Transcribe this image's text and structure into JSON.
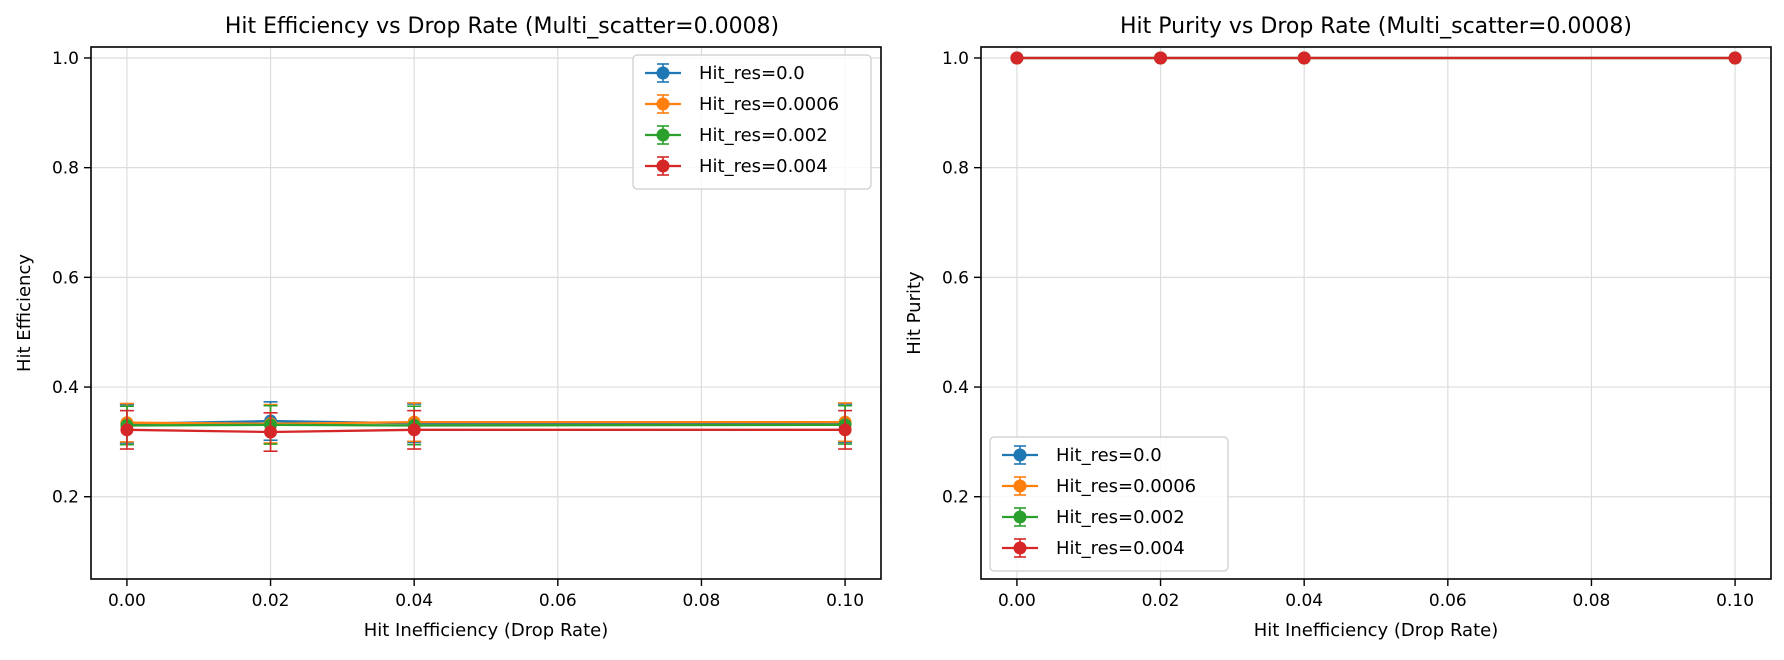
{
  "chart_data": [
    {
      "type": "line",
      "title": "Hit Efficiency vs Drop Rate (Multi_scatter=0.0008)",
      "xlabel": "Hit Inefficiency (Drop Rate)",
      "ylabel": "Hit Efficiency",
      "x": [
        0.0,
        0.02,
        0.04,
        0.1
      ],
      "xlim": [
        -0.005,
        0.105
      ],
      "ylim": [
        0.05,
        1.02
      ],
      "xticks": [
        "0.00",
        "0.02",
        "0.04",
        "0.06",
        "0.08",
        "0.10"
      ],
      "yticks": [
        "0.2",
        "0.4",
        "0.6",
        "0.8",
        "1.0"
      ],
      "grid": true,
      "legend_position": "top-right",
      "series": [
        {
          "name": "Hit_res=0.0",
          "color": "#1f77b4",
          "values": [
            0.333,
            0.338,
            0.334,
            0.334
          ],
          "errors": [
            0.035,
            0.035,
            0.035,
            0.035
          ]
        },
        {
          "name": "Hit_res=0.0006",
          "color": "#ff7f0e",
          "values": [
            0.335,
            0.333,
            0.336,
            0.336
          ],
          "errors": [
            0.035,
            0.035,
            0.035,
            0.035
          ]
        },
        {
          "name": "Hit_res=0.002",
          "color": "#2ca02c",
          "values": [
            0.33,
            0.331,
            0.33,
            0.331
          ],
          "errors": [
            0.035,
            0.035,
            0.035,
            0.035
          ]
        },
        {
          "name": "Hit_res=0.004",
          "color": "#d62728",
          "values": [
            0.322,
            0.318,
            0.322,
            0.322
          ],
          "errors": [
            0.035,
            0.035,
            0.035,
            0.035
          ]
        }
      ]
    },
    {
      "type": "line",
      "title": "Hit Purity vs Drop Rate (Multi_scatter=0.0008)",
      "xlabel": "Hit Inefficiency (Drop Rate)",
      "ylabel": "Hit Purity",
      "x": [
        0.0,
        0.02,
        0.04,
        0.1
      ],
      "xlim": [
        -0.005,
        0.105
      ],
      "ylim": [
        0.05,
        1.02
      ],
      "xticks": [
        "0.00",
        "0.02",
        "0.04",
        "0.06",
        "0.08",
        "0.10"
      ],
      "yticks": [
        "0.2",
        "0.4",
        "0.6",
        "0.8",
        "1.0"
      ],
      "grid": true,
      "legend_position": "bottom-left",
      "series": [
        {
          "name": "Hit_res=0.0",
          "color": "#1f77b4",
          "values": [
            1.0,
            1.0,
            1.0,
            1.0
          ],
          "errors": [
            0.0,
            0.0,
            0.0,
            0.0
          ]
        },
        {
          "name": "Hit_res=0.0006",
          "color": "#ff7f0e",
          "values": [
            1.0,
            1.0,
            1.0,
            1.0
          ],
          "errors": [
            0.0,
            0.0,
            0.0,
            0.0
          ]
        },
        {
          "name": "Hit_res=0.002",
          "color": "#2ca02c",
          "values": [
            1.0,
            1.0,
            1.0,
            1.0
          ],
          "errors": [
            0.0,
            0.0,
            0.0,
            0.0
          ]
        },
        {
          "name": "Hit_res=0.004",
          "color": "#d62728",
          "values": [
            1.0,
            1.0,
            1.0,
            1.0
          ],
          "errors": [
            0.0,
            0.0,
            0.0,
            0.0
          ]
        }
      ]
    }
  ]
}
